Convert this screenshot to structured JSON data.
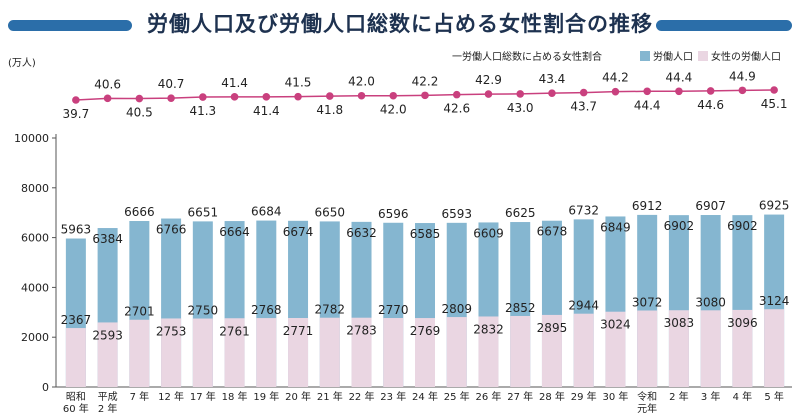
{
  "title": "労働人口及び労働人口総数に占める女性割合の推移",
  "colors": {
    "labor_bar": "#85b6d0",
    "female_bar": "#ead6e2",
    "ratio_line": "#c9407e",
    "title_accent": "#2b6ea9"
  },
  "chart_data": {
    "type": "bar",
    "title": "労働人口及び労働人口総数に占める女性割合の推移",
    "ylabel": "(万人)",
    "xlabel": "",
    "ylim": [
      0,
      10000
    ],
    "yticks": [
      "0",
      "2000",
      "4000",
      "6000",
      "8000",
      "10000"
    ],
    "categories": [
      [
        "昭和",
        "60 年"
      ],
      [
        "平成",
        "2 年"
      ],
      [
        "7 年"
      ],
      [
        "12 年"
      ],
      [
        "17 年"
      ],
      [
        "18 年"
      ],
      [
        "19 年"
      ],
      [
        "20 年"
      ],
      [
        "21 年"
      ],
      [
        "22 年"
      ],
      [
        "23 年"
      ],
      [
        "24 年"
      ],
      [
        "25 年"
      ],
      [
        "26 年"
      ],
      [
        "27 年"
      ],
      [
        "28 年"
      ],
      [
        "29 年"
      ],
      [
        "30 年"
      ],
      [
        "令和",
        "元年"
      ],
      [
        "2 年"
      ],
      [
        "3 年"
      ],
      [
        "4 年"
      ],
      [
        "5 年"
      ]
    ],
    "legend": [
      "一労働人口総数に占める女性割合",
      "労働人口",
      "女性の労働人口"
    ],
    "series": [
      {
        "name": "労働人口",
        "values": [
          5963,
          6384,
          6666,
          6766,
          6651,
          6664,
          6684,
          6674,
          6650,
          6632,
          6596,
          6585,
          6593,
          6609,
          6625,
          6678,
          6732,
          6849,
          6912,
          6902,
          6907,
          6902,
          6925
        ]
      },
      {
        "name": "女性の労働人口",
        "values": [
          2367,
          2593,
          2701,
          2753,
          2750,
          2761,
          2768,
          2771,
          2782,
          2783,
          2770,
          2769,
          2809,
          2832,
          2852,
          2895,
          2944,
          3024,
          3072,
          3083,
          3080,
          3096,
          3124
        ]
      },
      {
        "name": "一労働人口総数に占める女性割合",
        "values": [
          39.7,
          40.6,
          40.5,
          40.7,
          41.3,
          41.4,
          41.4,
          41.5,
          41.8,
          42.0,
          42.0,
          42.2,
          42.6,
          42.9,
          43.0,
          43.4,
          43.7,
          44.2,
          44.4,
          44.4,
          44.6,
          44.9,
          45.1
        ],
        "labels": [
          "39.7",
          "40.6",
          "40.5",
          "40.7",
          "41.3",
          "41.4",
          "41.4",
          "41.5",
          "41.8",
          "42.0",
          "42.0",
          "42.2",
          "42.6",
          "42.9",
          "43.0",
          "43.4",
          "43.7",
          "44.2",
          "44.4",
          "44.4",
          "44.6",
          "44.9",
          "45.1"
        ]
      }
    ]
  }
}
